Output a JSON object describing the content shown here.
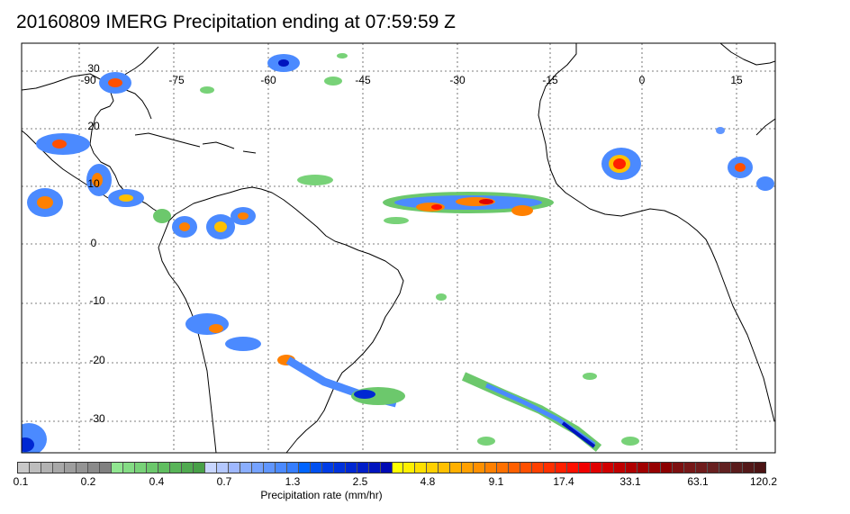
{
  "title": "20160809 IMERG Precipitation ending at 07:59:59 Z",
  "longitude_labels": [
    "-90",
    "-75",
    "-60",
    "-45",
    "-30",
    "-15",
    "0",
    "15"
  ],
  "latitude_labels": [
    "30",
    "20",
    "10",
    "0",
    "-10",
    "-20",
    "-30"
  ],
  "colorbar": {
    "label": "Precipitation rate (mm/hr)",
    "tick_labels": [
      "0.1",
      "0.2",
      "0.4",
      "0.7",
      "1.3",
      "2.5",
      "4.8",
      "9.1",
      "17.4",
      "33.1",
      "63.1",
      "120.2"
    ],
    "colors": [
      "#c8c8c8",
      "#bdbdbd",
      "#b2b2b2",
      "#a8a8a8",
      "#9e9e9e",
      "#949494",
      "#8a8a8a",
      "#808080",
      "#90e690",
      "#84dc84",
      "#78d278",
      "#6cc86c",
      "#60be60",
      "#58b458",
      "#50aa50",
      "#48a048",
      "#c8d6ff",
      "#b4c8ff",
      "#9fb8ff",
      "#8aaeff",
      "#75a2ff",
      "#6096ff",
      "#4b8aff",
      "#367eff",
      "#0064ff",
      "#0050f0",
      "#003ce6",
      "#0032dc",
      "#0028d2",
      "#001ec8",
      "#0014be",
      "#000ab4",
      "#ffff00",
      "#fff000",
      "#ffe000",
      "#ffd000",
      "#ffc000",
      "#ffb000",
      "#ffa000",
      "#ff9000",
      "#ff8000",
      "#ff7000",
      "#ff6000",
      "#ff5000",
      "#ff4000",
      "#ff3000",
      "#ff2000",
      "#ff1000",
      "#f00000",
      "#e00000",
      "#d00000",
      "#c00000",
      "#b00000",
      "#a00000",
      "#960000",
      "#8c0000",
      "#7d1010",
      "#761818",
      "#6f1c1c",
      "#682020",
      "#612020",
      "#5a1c1c",
      "#531818",
      "#4c1414"
    ]
  }
}
